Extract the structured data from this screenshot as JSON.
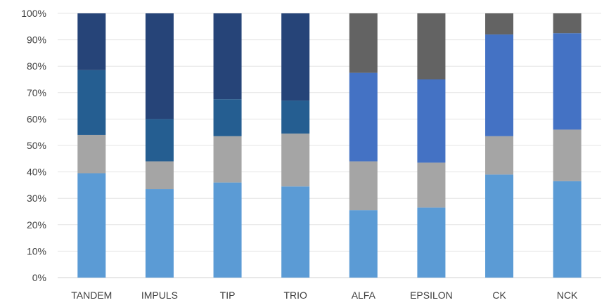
{
  "chart_data": {
    "type": "bar",
    "stacked": true,
    "percent": true,
    "categories": [
      "TANDEM",
      "IMPULS",
      "TIP",
      "TRIO",
      "ALFA",
      "EPSILON",
      "CK",
      "NCK"
    ],
    "series": [
      {
        "color": "#5b9bd5",
        "values": [
          39.5,
          33.5,
          36.0,
          34.5,
          25.5,
          26.5,
          39.0,
          36.5
        ]
      },
      {
        "color": "#a5a5a5",
        "values": [
          14.5,
          10.5,
          17.5,
          20.0,
          18.5,
          17.0,
          14.5,
          19.5
        ]
      },
      {
        "color": "#255e91",
        "values": [
          24.5,
          16.0,
          14.0,
          12.5,
          0,
          0,
          0,
          0
        ]
      },
      {
        "color": "#4472c4",
        "values": [
          0,
          0,
          0,
          0,
          33.5,
          31.5,
          38.5,
          36.5
        ]
      },
      {
        "color": "#264478",
        "values": [
          21.5,
          40.0,
          32.5,
          33.0,
          0,
          0,
          0,
          0
        ]
      },
      {
        "color": "#636363",
        "values": [
          0,
          0,
          0,
          0,
          22.5,
          25.0,
          8.0,
          7.5
        ]
      }
    ],
    "ylim": [
      0,
      100
    ],
    "y_ticks": [
      "0%",
      "10%",
      "20%",
      "30%",
      "40%",
      "50%",
      "60%",
      "70%",
      "80%",
      "90%",
      "100%"
    ],
    "grid": true
  }
}
